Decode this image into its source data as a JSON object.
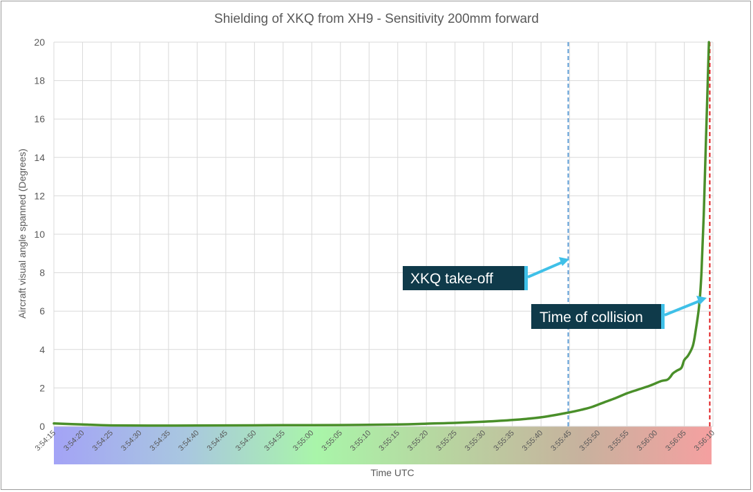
{
  "colors": {
    "series": "#4a8f2a",
    "takeoff_line": "#5b9bd5",
    "collision_line": "#e0191c",
    "callout_bg": "#0f3a4a",
    "callout_accent": "#3fc0e8",
    "grid": "#d9d9d9",
    "axis_text": "#595959"
  },
  "chart_data": {
    "type": "line",
    "title": "Shielding of XKQ from XH9 - Sensitivity 200mm forward",
    "xlabel": "Time UTC",
    "ylabel": "Aircraft visual angle spanned (Degrees)",
    "ylim": [
      0,
      20
    ],
    "yticks": [
      0,
      2,
      4,
      6,
      8,
      10,
      12,
      14,
      16,
      18,
      20
    ],
    "xlim_seconds": [
      0,
      115
    ],
    "xtick_labels": [
      "3:54:15",
      "3:54:20",
      "3:54:25",
      "3:54:30",
      "3:54:35",
      "3:54:40",
      "3:54:45",
      "3:54:50",
      "3:54:55",
      "3:55:00",
      "3:55:05",
      "3:55:10",
      "3:55:15",
      "3:55:20",
      "3:55:25",
      "3:55:30",
      "3:55:35",
      "3:55:40",
      "3:55:45",
      "3:55:50",
      "3:55:55",
      "3:56:00",
      "3:56:05",
      "3:56:10"
    ],
    "grid": true,
    "legend": "none",
    "series": [
      {
        "name": "Aircraft visual angle spanned",
        "x_seconds": [
          0,
          5,
          10,
          20,
          30,
          40,
          50,
          60,
          65,
          70,
          75,
          80,
          85,
          90,
          92,
          94,
          96,
          98,
          100,
          102,
          104,
          106,
          107,
          107.5,
          108,
          108.7,
          109.5,
          110,
          110.7,
          111.5,
          112,
          112.6,
          113,
          113.4,
          113.8,
          114.3
        ],
        "values": [
          0.15,
          0.1,
          0.05,
          0.04,
          0.05,
          0.06,
          0.07,
          0.1,
          0.14,
          0.18,
          0.24,
          0.33,
          0.47,
          0.73,
          0.86,
          1.02,
          1.25,
          1.47,
          1.72,
          1.92,
          2.12,
          2.36,
          2.42,
          2.55,
          2.75,
          2.9,
          3.05,
          3.45,
          3.7,
          4.2,
          5.0,
          6.3,
          8.0,
          11.0,
          15.0,
          20.0
        ]
      }
    ],
    "annotations": [
      {
        "label": "XKQ take-off",
        "x_seconds": 89.75,
        "style": "dashed-vertical",
        "color_key": "takeoff_line"
      },
      {
        "label": "Time of collision",
        "x_seconds": 114.45,
        "style": "dashed-vertical",
        "color_key": "collision_line"
      }
    ],
    "x_band_gradient": [
      "#a3a3f6",
      "#a9c7e0",
      "#a9f5a9",
      "#b8d4a0",
      "#c7b29e",
      "#f5a0a0"
    ]
  }
}
